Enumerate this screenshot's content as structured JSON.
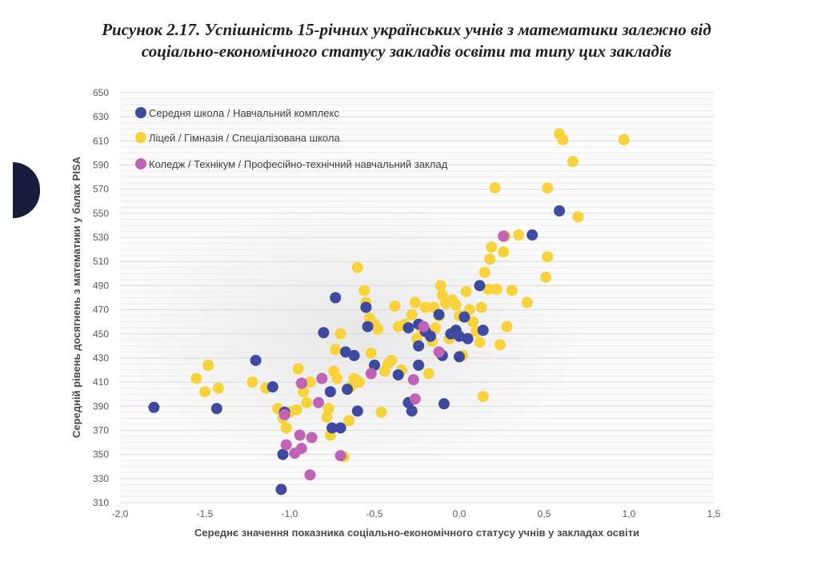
{
  "figure": {
    "title_line1": "Рисунок 2.17. Успішність 15-річних українських учнів з математики залежно від",
    "title_line2": "соціально-економічного статусу закладів освіти та типу цих закладів"
  },
  "chart_data": {
    "type": "scatter",
    "title": "Рисунок 2.17. Успішність 15-річних українських учнів з математики залежно від соціально-економічного статусу закладів освіти та типу цих закладів",
    "xlabel": "Середнє значення показника соціально-економічного статусу учнів у закладах освіти",
    "ylabel": "Середній рівень досягнень з математики  у балах PISA",
    "xlim": [
      -2.0,
      1.5
    ],
    "ylim": [
      310,
      650
    ],
    "x_ticks": [
      "-2,0",
      "-1,5",
      "-1,0",
      "-0,5",
      "0,0",
      "0,5",
      "1,0",
      "1,5"
    ],
    "y_ticks": [
      "310",
      "330",
      "350",
      "370",
      "390",
      "410",
      "430",
      "450",
      "470",
      "490",
      "510",
      "530",
      "550",
      "570",
      "590",
      "610",
      "630",
      "650"
    ],
    "grid": true,
    "legend_position": "top-left",
    "series": [
      {
        "name": "Середня школа  / Навчальний комплекс",
        "color": "#3d4aa0",
        "points": [
          [
            -1.8,
            389
          ],
          [
            -1.43,
            388
          ],
          [
            -1.2,
            428
          ],
          [
            -1.1,
            406
          ],
          [
            -1.05,
            321
          ],
          [
            -1.04,
            350
          ],
          [
            -1.03,
            385
          ],
          [
            -0.93,
            409
          ],
          [
            -0.8,
            451
          ],
          [
            -0.76,
            402
          ],
          [
            -0.75,
            372
          ],
          [
            -0.73,
            480
          ],
          [
            -0.7,
            372
          ],
          [
            -0.67,
            435
          ],
          [
            -0.66,
            404
          ],
          [
            -0.62,
            432
          ],
          [
            -0.6,
            386
          ],
          [
            -0.55,
            472
          ],
          [
            -0.54,
            456
          ],
          [
            -0.5,
            424
          ],
          [
            -0.36,
            416
          ],
          [
            -0.3,
            455
          ],
          [
            -0.3,
            393
          ],
          [
            -0.28,
            386
          ],
          [
            -0.24,
            458
          ],
          [
            -0.24,
            440
          ],
          [
            -0.24,
            424
          ],
          [
            -0.2,
            452
          ],
          [
            -0.17,
            448
          ],
          [
            -0.12,
            466
          ],
          [
            -0.1,
            432
          ],
          [
            -0.09,
            392
          ],
          [
            -0.05,
            450
          ],
          [
            -0.02,
            453
          ],
          [
            0.0,
            448
          ],
          [
            0.0,
            431
          ],
          [
            0.03,
            464
          ],
          [
            0.05,
            446
          ],
          [
            0.12,
            490
          ],
          [
            0.14,
            453
          ],
          [
            0.43,
            532
          ],
          [
            0.59,
            552
          ]
        ]
      },
      {
        "name": "Ліцей / Гімназія / Спеціалізована школа",
        "color": "#f7d23a",
        "points": [
          [
            -1.55,
            413
          ],
          [
            -1.5,
            402
          ],
          [
            -1.48,
            424
          ],
          [
            -1.42,
            405
          ],
          [
            -1.22,
            410
          ],
          [
            -1.14,
            405
          ],
          [
            -1.07,
            388
          ],
          [
            -1.04,
            380
          ],
          [
            -1.02,
            372
          ],
          [
            -1.0,
            385
          ],
          [
            -0.96,
            387
          ],
          [
            -0.95,
            421
          ],
          [
            -0.92,
            402
          ],
          [
            -0.9,
            393
          ],
          [
            -0.88,
            410
          ],
          [
            -0.78,
            381
          ],
          [
            -0.77,
            388
          ],
          [
            -0.76,
            366
          ],
          [
            -0.74,
            419
          ],
          [
            -0.73,
            437
          ],
          [
            -0.72,
            413
          ],
          [
            -0.7,
            450
          ],
          [
            -0.68,
            348
          ],
          [
            -0.65,
            378
          ],
          [
            -0.64,
            406
          ],
          [
            -0.62,
            413
          ],
          [
            -0.6,
            505
          ],
          [
            -0.59,
            410
          ],
          [
            -0.56,
            486
          ],
          [
            -0.55,
            476
          ],
          [
            -0.53,
            463
          ],
          [
            -0.52,
            434
          ],
          [
            -0.5,
            458
          ],
          [
            -0.48,
            454
          ],
          [
            -0.46,
            385
          ],
          [
            -0.44,
            419
          ],
          [
            -0.42,
            425
          ],
          [
            -0.4,
            428
          ],
          [
            -0.38,
            473
          ],
          [
            -0.36,
            456
          ],
          [
            -0.34,
            420
          ],
          [
            -0.32,
            458
          ],
          [
            -0.28,
            466
          ],
          [
            -0.26,
            476
          ],
          [
            -0.25,
            446
          ],
          [
            -0.22,
            454
          ],
          [
            -0.2,
            472
          ],
          [
            -0.18,
            417
          ],
          [
            -0.16,
            444
          ],
          [
            -0.15,
            472
          ],
          [
            -0.14,
            455
          ],
          [
            -0.12,
            465
          ],
          [
            -0.11,
            490
          ],
          [
            -0.1,
            482
          ],
          [
            -0.08,
            475
          ],
          [
            -0.06,
            446
          ],
          [
            -0.04,
            478
          ],
          [
            -0.02,
            474
          ],
          [
            0.0,
            465
          ],
          [
            0.02,
            432
          ],
          [
            0.04,
            485
          ],
          [
            0.06,
            470
          ],
          [
            0.08,
            460
          ],
          [
            0.1,
            452
          ],
          [
            0.12,
            443
          ],
          [
            0.13,
            472
          ],
          [
            0.14,
            398
          ],
          [
            0.15,
            501
          ],
          [
            0.17,
            487
          ],
          [
            0.18,
            512
          ],
          [
            0.19,
            522
          ],
          [
            0.21,
            571
          ],
          [
            0.22,
            487
          ],
          [
            0.24,
            441
          ],
          [
            0.26,
            518
          ],
          [
            0.27,
            531
          ],
          [
            0.28,
            456
          ],
          [
            0.31,
            486
          ],
          [
            0.35,
            532
          ],
          [
            0.4,
            476
          ],
          [
            0.51,
            497
          ],
          [
            0.52,
            514
          ],
          [
            0.52,
            571
          ],
          [
            0.59,
            616
          ],
          [
            0.61,
            611
          ],
          [
            0.67,
            593
          ],
          [
            0.7,
            547
          ],
          [
            0.97,
            611
          ]
        ]
      },
      {
        "name": "Коледж / Технікум / Професійно-технічний навчальний заклад",
        "color": "#c063b6",
        "points": [
          [
            -1.03,
            383
          ],
          [
            -1.02,
            358
          ],
          [
            -0.97,
            351
          ],
          [
            -0.94,
            366
          ],
          [
            -0.93,
            409
          ],
          [
            -0.93,
            355
          ],
          [
            -0.88,
            333
          ],
          [
            -0.87,
            364
          ],
          [
            -0.83,
            393
          ],
          [
            -0.81,
            413
          ],
          [
            -0.7,
            349
          ],
          [
            -0.52,
            417
          ],
          [
            -0.27,
            412
          ],
          [
            -0.26,
            396
          ],
          [
            -0.21,
            456
          ],
          [
            -0.12,
            435
          ],
          [
            0.26,
            531
          ]
        ]
      }
    ]
  }
}
